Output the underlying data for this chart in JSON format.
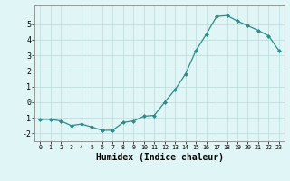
{
  "x": [
    0,
    1,
    2,
    3,
    4,
    5,
    6,
    7,
    8,
    9,
    10,
    11,
    12,
    13,
    14,
    15,
    16,
    17,
    18,
    19,
    20,
    21,
    22,
    23
  ],
  "y": [
    -1.1,
    -1.1,
    -1.2,
    -1.5,
    -1.4,
    -1.6,
    -1.8,
    -1.8,
    -1.3,
    -1.2,
    -0.9,
    -0.85,
    0.0,
    0.8,
    1.8,
    3.3,
    4.35,
    5.5,
    5.55,
    5.2,
    4.9,
    4.6,
    4.25,
    3.3
  ],
  "line_color": "#2e8b8b",
  "marker": "D",
  "marker_size": 2.0,
  "bg_color": "#e0f5f5",
  "grid_color": "#c0dede",
  "xlabel": "Humidex (Indice chaleur)",
  "xlabel_fontsize": 7,
  "tick_fontsize": 6,
  "ylim": [
    -2.5,
    6.2
  ],
  "xlim": [
    -0.5,
    23.5
  ],
  "yticks": [
    -2,
    -1,
    0,
    1,
    2,
    3,
    4,
    5
  ],
  "xticks": [
    0,
    1,
    2,
    3,
    4,
    5,
    6,
    7,
    8,
    9,
    10,
    11,
    12,
    13,
    14,
    15,
    16,
    17,
    18,
    19,
    20,
    21,
    22,
    23
  ]
}
